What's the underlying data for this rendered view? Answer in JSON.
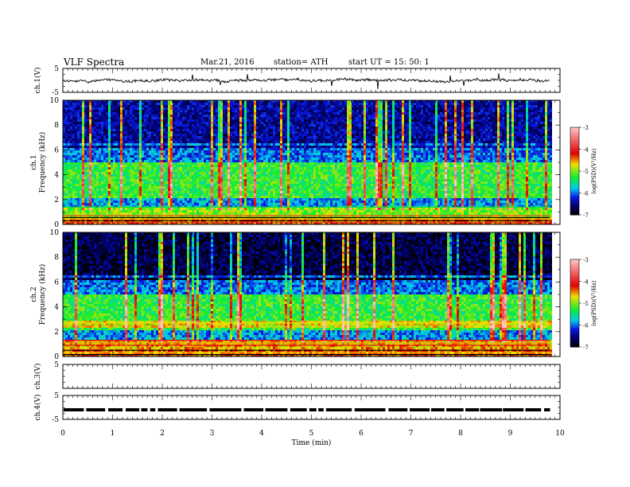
{
  "header": {
    "title": "VLF  Spectra",
    "date": "Mar.21, 2016",
    "station": "station= ATH",
    "start": "start  UT  =    15: 50: 1"
  },
  "chart_data": [
    {
      "type": "line",
      "panel": "ch1-waveform",
      "ylabel": "ch.1(V)",
      "ylim": [
        -5,
        5
      ],
      "y_ticks": [
        "5",
        "-5"
      ],
      "baseline": 0,
      "description_level": "noisy waveform around 0 V"
    },
    {
      "type": "heatmap",
      "panel": "ch1-spectrogram",
      "ylabel_outer": "ch.1",
      "ylabel": "Frequency  (kHz)",
      "ylim": [
        0,
        10
      ],
      "y_ticks": [
        "0",
        "2",
        "4",
        "6",
        "8",
        "10"
      ],
      "colorbar": {
        "label": "log(PSD)(V²/Hz)",
        "range": [
          -7,
          -3
        ],
        "ticks": [
          "-3",
          "-4",
          "-5",
          "-6",
          "-7"
        ]
      }
    },
    {
      "type": "heatmap",
      "panel": "ch2-spectrogram",
      "ylabel_outer": "ch.2",
      "ylabel": "Frequency  (kHz)",
      "ylim": [
        0,
        10
      ],
      "y_ticks": [
        "0",
        "2",
        "4",
        "6",
        "8",
        "10"
      ],
      "colorbar": {
        "label": "log(PSD)(V²/Hz)",
        "range": [
          -7,
          -3
        ],
        "ticks": [
          "-3",
          "-4",
          "-5",
          "-6",
          "-7"
        ]
      }
    },
    {
      "type": "line",
      "panel": "ch3-waveform",
      "ylabel": "ch.3(V)",
      "ylim": [
        -5,
        5
      ],
      "y_ticks": [
        "5"
      ]
    },
    {
      "type": "line",
      "panel": "ch4-waveform",
      "ylabel": "ch.4(V)",
      "ylim": [
        -5,
        5
      ],
      "y_ticks": [
        "5",
        "-5"
      ],
      "baseline": -1
    }
  ],
  "x_axis": {
    "xlabel": "Time  (min)",
    "xlim": [
      0,
      10
    ],
    "ticks": [
      "0",
      "1",
      "2",
      "3",
      "4",
      "5",
      "6",
      "7",
      "8",
      "9",
      "10"
    ],
    "data_end": 9.8
  },
  "colors": {
    "black": "#000000",
    "navy": "#00006e",
    "blue": "#0a18e0",
    "cyan": "#00c8f0",
    "green": "#10ee30",
    "yellow": "#f0e000",
    "red": "#e00000",
    "pink": "#ffc8c8"
  }
}
